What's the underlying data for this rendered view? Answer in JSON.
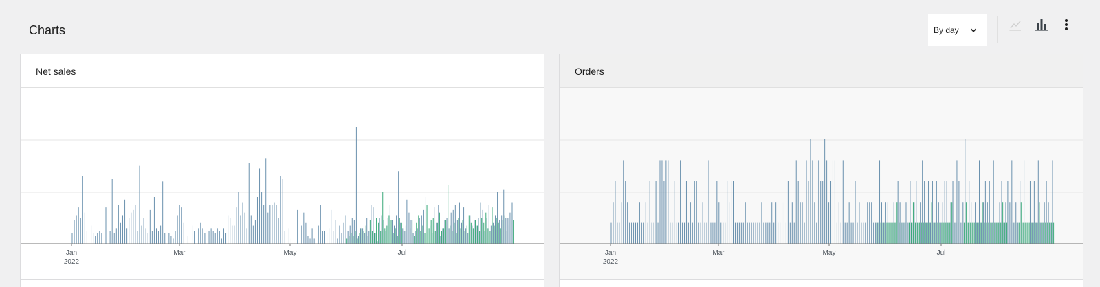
{
  "header": {
    "title": "Charts",
    "interval_select_label": "By day",
    "tools": {
      "line_chart_icon": "line-chart-icon",
      "bar_chart_icon": "bar-chart-icon",
      "more_icon": "more-vertical-icon"
    }
  },
  "colors": {
    "primary_bar": "#6a91ae",
    "secondary_bar": "#3aa97a",
    "axis": "#757575",
    "grid": "#e6e6e6"
  },
  "chart_data": [
    {
      "type": "bar",
      "title": "Net sales",
      "x_ticks": [
        "Jan",
        "Mar",
        "May",
        "Jul"
      ],
      "x_tick_year": "2022",
      "grid": true,
      "series": [
        {
          "values": [
            0,
            0,
            0,
            0,
            0,
            0,
            0,
            0,
            0,
            0,
            0,
            0,
            0,
            0,
            0,
            0,
            0,
            0,
            0,
            0,
            0,
            0,
            0,
            0,
            0,
            0,
            0,
            8,
            18,
            22,
            28,
            20,
            52,
            24,
            10,
            34,
            14,
            8,
            6,
            8,
            10,
            8,
            0,
            28,
            0,
            10,
            50,
            8,
            12,
            30,
            16,
            22,
            34,
            12,
            20,
            24,
            26,
            30,
            10,
            60,
            14,
            20,
            12,
            8,
            26,
            10,
            36,
            12,
            10,
            14,
            48,
            8,
            0,
            8,
            6,
            4,
            10,
            22,
            30,
            28,
            16,
            0,
            6,
            0,
            14,
            10,
            0,
            12,
            16,
            12,
            8,
            0,
            10,
            12,
            10,
            8,
            12,
            10,
            4,
            12,
            8,
            22,
            20,
            14,
            14,
            28,
            40,
            22,
            32,
            24,
            12,
            62,
            22,
            14,
            18,
            36,
            58,
            40,
            30,
            66,
            24,
            30,
            30,
            32,
            30,
            20,
            52,
            50,
            10,
            0,
            12,
            4,
            0,
            0,
            26,
            0,
            14,
            24,
            16,
            6,
            4,
            12,
            4,
            0,
            14,
            30,
            10,
            10,
            8,
            12,
            26,
            10,
            18,
            4,
            14,
            8,
            16,
            22,
            10,
            14,
            20,
            18,
            90,
            6,
            12,
            12,
            8,
            20,
            10,
            30,
            28,
            8,
            2,
            20,
            22,
            18,
            10,
            20,
            30,
            18,
            14,
            22,
            56,
            16,
            12,
            10,
            34,
            24,
            18,
            8,
            10,
            12,
            20,
            22,
            26,
            36,
            16,
            14,
            8,
            28,
            16,
            30,
            6,
            12,
            18,
            20,
            12,
            24,
            26,
            30,
            18,
            32,
            16,
            28,
            12,
            8,
            22,
            14,
            18,
            14,
            20,
            32,
            26,
            10,
            20,
            30,
            14,
            16,
            22,
            40,
            18,
            22,
            42,
            20,
            20,
            24,
            32
          ],
          "color": "#6a91ae"
        },
        {
          "values": [
            0,
            0,
            0,
            0,
            0,
            0,
            0,
            0,
            0,
            0,
            0,
            0,
            0,
            0,
            0,
            0,
            0,
            0,
            0,
            0,
            0,
            0,
            0,
            0,
            0,
            0,
            0,
            0,
            0,
            0,
            0,
            0,
            0,
            0,
            0,
            0,
            0,
            0,
            0,
            0,
            0,
            0,
            0,
            0,
            0,
            0,
            0,
            0,
            0,
            0,
            0,
            0,
            0,
            0,
            0,
            0,
            0,
            0,
            0,
            0,
            0,
            0,
            0,
            0,
            0,
            0,
            0,
            0,
            0,
            0,
            0,
            0,
            0,
            0,
            0,
            0,
            0,
            0,
            0,
            0,
            0,
            0,
            0,
            0,
            0,
            0,
            0,
            0,
            0,
            0,
            0,
            0,
            0,
            0,
            0,
            0,
            0,
            0,
            0,
            0,
            0,
            0,
            0,
            0,
            0,
            0,
            0,
            0,
            0,
            0,
            0,
            0,
            0,
            0,
            0,
            0,
            0,
            0,
            0,
            0,
            0,
            0,
            0,
            0,
            0,
            0,
            0,
            0,
            0,
            0,
            0,
            0,
            0,
            0,
            0,
            0,
            0,
            0,
            0,
            0,
            0,
            0,
            0,
            0,
            0,
            0,
            0,
            0,
            0,
            0,
            0,
            0,
            0,
            0,
            0,
            0,
            0,
            4,
            6,
            8,
            6,
            10,
            4,
            8,
            12,
            10,
            14,
            6,
            18,
            10,
            8,
            20,
            16,
            10,
            40,
            12,
            14,
            22,
            18,
            8,
            12,
            6,
            20,
            16,
            10,
            14,
            24,
            12,
            18,
            6,
            16,
            22,
            10,
            14,
            8,
            30,
            12,
            18,
            20,
            10,
            16,
            24,
            10,
            12,
            18,
            45,
            14,
            10,
            16,
            8,
            20,
            12,
            18,
            10,
            14,
            22,
            16,
            12,
            18,
            14,
            10,
            20,
            16,
            24,
            12,
            10,
            28,
            14,
            20,
            16,
            12,
            18,
            22,
            10,
            14,
            24,
            18,
            16,
            20,
            12,
            40,
            14,
            24,
            18,
            22
          ],
          "color": "#3aa97a"
        }
      ]
    },
    {
      "type": "bar",
      "title": "Orders",
      "x_ticks": [
        "Jan",
        "Mar",
        "May",
        "Jul"
      ],
      "x_tick_year": "2022",
      "grid": true,
      "series": [
        {
          "values": [
            0,
            0,
            0,
            0,
            0,
            0,
            0,
            0,
            0,
            0,
            0,
            0,
            0,
            0,
            0,
            0,
            0,
            0,
            0,
            0,
            0,
            0,
            0,
            0,
            0,
            0,
            0,
            1,
            2,
            3,
            1,
            1,
            2,
            4,
            3,
            2,
            1,
            1,
            1,
            1,
            1,
            2,
            1,
            1,
            2,
            1,
            3,
            1,
            1,
            3,
            1,
            4,
            4,
            3,
            4,
            4,
            1,
            1,
            3,
            1,
            1,
            4,
            1,
            1,
            3,
            1,
            2,
            1,
            3,
            3,
            1,
            1,
            2,
            1,
            1,
            4,
            1,
            1,
            1,
            3,
            2,
            1,
            1,
            1,
            3,
            2,
            3,
            3,
            1,
            1,
            1,
            1,
            1,
            2,
            1,
            1,
            1,
            1,
            1,
            1,
            1,
            2,
            1,
            1,
            1,
            1,
            2,
            1,
            2,
            1,
            1,
            2,
            2,
            1,
            3,
            1,
            2,
            1,
            4,
            3,
            2,
            2,
            1,
            4,
            3,
            5,
            4,
            2,
            1,
            4,
            3,
            3,
            5,
            4,
            2,
            3,
            4,
            4,
            1,
            2,
            1,
            4,
            1,
            1,
            2,
            1,
            1,
            3,
            1,
            2,
            1,
            1,
            1,
            2,
            2,
            2,
            1,
            1,
            1,
            4,
            2,
            1,
            2,
            2,
            1,
            1,
            2,
            1,
            3,
            2,
            1,
            1,
            2,
            1,
            3,
            1,
            2,
            3,
            1,
            2,
            4,
            3,
            1,
            3,
            1,
            3,
            1,
            3,
            2,
            1,
            2,
            3,
            3,
            1,
            2,
            3,
            1,
            4,
            3,
            1,
            2,
            5,
            1,
            3,
            2,
            1,
            2,
            1,
            4,
            1,
            2,
            3,
            2,
            3,
            1,
            4,
            1,
            1,
            2,
            3,
            1,
            2,
            3,
            2,
            4,
            1,
            2,
            1,
            3,
            1,
            4,
            1,
            2,
            3,
            1,
            3,
            1,
            4,
            1,
            1,
            2,
            3,
            2,
            1,
            4
          ],
          "color": "#6a91ae"
        },
        {
          "values": [
            0,
            0,
            0,
            0,
            0,
            0,
            0,
            0,
            0,
            0,
            0,
            0,
            0,
            0,
            0,
            0,
            0,
            0,
            0,
            0,
            0,
            0,
            0,
            0,
            0,
            0,
            0,
            0,
            0,
            0,
            0,
            0,
            0,
            0,
            0,
            0,
            0,
            0,
            0,
            0,
            0,
            0,
            0,
            0,
            0,
            0,
            0,
            0,
            0,
            0,
            0,
            0,
            0,
            0,
            0,
            0,
            0,
            0,
            0,
            0,
            0,
            0,
            0,
            0,
            0,
            0,
            0,
            0,
            0,
            0,
            0,
            0,
            0,
            0,
            0,
            0,
            0,
            0,
            0,
            0,
            0,
            0,
            0,
            0,
            0,
            0,
            0,
            0,
            0,
            0,
            0,
            0,
            0,
            0,
            0,
            0,
            0,
            0,
            0,
            0,
            0,
            0,
            0,
            0,
            0,
            0,
            0,
            0,
            0,
            0,
            0,
            0,
            0,
            0,
            0,
            0,
            0,
            0,
            0,
            0,
            0,
            0,
            0,
            0,
            0,
            0,
            0,
            0,
            0,
            0,
            0,
            0,
            0,
            0,
            0,
            0,
            0,
            0,
            0,
            0,
            0,
            0,
            0,
            0,
            0,
            0,
            0,
            0,
            0,
            0,
            0,
            0,
            0,
            0,
            0,
            0,
            0,
            1,
            1,
            1,
            1,
            1,
            1,
            1,
            1,
            1,
            1,
            2,
            1,
            1,
            1,
            1,
            1,
            1,
            1,
            2,
            1,
            1,
            1,
            1,
            1,
            1,
            1,
            1,
            2,
            1,
            1,
            1,
            1,
            1,
            1,
            1,
            1,
            1,
            2,
            1,
            1,
            1,
            1,
            1,
            1,
            2,
            1,
            1,
            1,
            1,
            1,
            1,
            1,
            2,
            1,
            1,
            1,
            1,
            1,
            1,
            1,
            1,
            1,
            2,
            1,
            1,
            1,
            1,
            1,
            1,
            1,
            1,
            2,
            1,
            1,
            1,
            1,
            1,
            1,
            1,
            1,
            2,
            1,
            1,
            1,
            1,
            1,
            1,
            1,
            1,
            1,
            2,
            1,
            1,
            1,
            4
          ],
          "color": "#3aa97a"
        }
      ]
    }
  ]
}
